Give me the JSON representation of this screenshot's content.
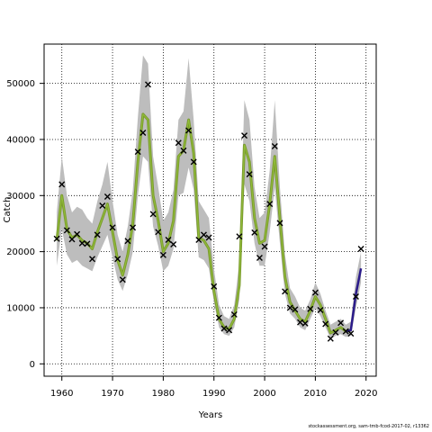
{
  "credit": "stockassessment.org, sam-tmb-fcod-2017-02, r13362",
  "chart_data": {
    "type": "line",
    "title": "",
    "xlabel": "Years",
    "ylabel": "Catch",
    "xlim": [
      1956.5,
      2022.0
    ],
    "ylim": [
      -2200,
      57000
    ],
    "xticks": [
      1960,
      1970,
      1980,
      1990,
      2000,
      2010,
      2020
    ],
    "yticks": [
      0,
      10000,
      20000,
      30000,
      40000,
      50000
    ],
    "grid": true,
    "colors": {
      "band": "#bdbdbd",
      "fit": "#7a9a2e",
      "fit_highlight": "#93c03a",
      "forecast": "#2b1b8a",
      "grid": "#000000",
      "observed": "#000000"
    },
    "series": [
      {
        "kind": "fitted",
        "x": [
          1959,
          1960,
          1961,
          1962,
          1963,
          1964,
          1965,
          1966,
          1967,
          1968,
          1969,
          1970,
          1971,
          1972,
          1973,
          1974,
          1975,
          1976,
          1977,
          1978,
          1979,
          1980,
          1981,
          1982,
          1983,
          1984,
          1985,
          1986,
          1987,
          1988,
          1989,
          1990,
          1991,
          1992,
          1993,
          1994,
          1995,
          1996,
          1997,
          1998,
          1999,
          2000,
          2001,
          2002,
          2003,
          2004,
          2005,
          2006,
          2007,
          2008,
          2009,
          2010,
          2011,
          2012,
          2013,
          2014,
          2015,
          2016,
          2017
        ],
        "values": [
          22000,
          30000,
          24000,
          22500,
          23000,
          22000,
          21500,
          20500,
          23500,
          26000,
          28500,
          23500,
          18500,
          15800,
          19500,
          25000,
          36000,
          44500,
          43500,
          30000,
          25500,
          20000,
          21500,
          25500,
          37000,
          38000,
          43500,
          37500,
          22500,
          22000,
          20500,
          13000,
          8000,
          6500,
          6200,
          8000,
          14000,
          39000,
          36000,
          26000,
          21500,
          22000,
          28500,
          37000,
          26000,
          15500,
          11000,
          9500,
          8000,
          7500,
          9500,
          12000,
          10500,
          8000,
          5500,
          6000,
          6500,
          5800,
          6000
        ]
      },
      {
        "kind": "forecast",
        "x": [
          2016,
          2017,
          2018,
          2019
        ],
        "values": [
          5800,
          6000,
          12500,
          17000
        ]
      },
      {
        "kind": "band-upper",
        "x": [
          1959,
          1960,
          1961,
          1962,
          1963,
          1964,
          1965,
          1966,
          1967,
          1968,
          1969,
          1970,
          1971,
          1972,
          1973,
          1974,
          1975,
          1976,
          1977,
          1978,
          1979,
          1980,
          1981,
          1982,
          1983,
          1984,
          1985,
          1986,
          1987,
          1988,
          1989,
          1990,
          1991,
          1992,
          1993,
          1994,
          1995,
          1996,
          1997,
          1998,
          1999,
          2000,
          2001,
          2002,
          2003,
          2004,
          2005,
          2006,
          2007,
          2008,
          2009,
          2010,
          2011,
          2012,
          2013,
          2014,
          2015,
          2016,
          2017,
          2018,
          2019
        ],
        "values": [
          27000,
          37000,
          30000,
          27000,
          28000,
          27500,
          26000,
          25000,
          29000,
          32000,
          36000,
          29000,
          23000,
          20000,
          24500,
          31000,
          44000,
          55000,
          53500,
          37000,
          31500,
          25500,
          27000,
          31000,
          43500,
          45000,
          54500,
          43500,
          29000,
          27500,
          26000,
          17000,
          10500,
          8500,
          8000,
          10500,
          18000,
          47000,
          43500,
          31500,
          26000,
          27000,
          34500,
          47000,
          31500,
          19500,
          13500,
          12000,
          10000,
          9500,
          11500,
          14500,
          12500,
          9500,
          7000,
          7500,
          8000,
          7000,
          7500,
          15500,
          20000
        ]
      },
      {
        "kind": "band-lower",
        "x": [
          1959,
          1960,
          1961,
          1962,
          1963,
          1964,
          1965,
          1966,
          1967,
          1968,
          1969,
          1970,
          1971,
          1972,
          1973,
          1974,
          1975,
          1976,
          1977,
          1978,
          1979,
          1980,
          1981,
          1982,
          1983,
          1984,
          1985,
          1986,
          1987,
          1988,
          1989,
          1990,
          1991,
          1992,
          1993,
          1994,
          1995,
          1996,
          1997,
          1998,
          1999,
          2000,
          2001,
          2002,
          2003,
          2004,
          2005,
          2006,
          2007,
          2008,
          2009,
          2010,
          2011,
          2012,
          2013,
          2014,
          2015,
          2016,
          2017,
          2018,
          2019
        ],
        "values": [
          17500,
          24000,
          19500,
          18000,
          18500,
          17500,
          17000,
          16500,
          19000,
          21000,
          23000,
          19000,
          15000,
          13000,
          16000,
          20000,
          30000,
          37000,
          36000,
          24500,
          21000,
          16500,
          17500,
          20500,
          30000,
          30500,
          35000,
          31000,
          19000,
          18500,
          17000,
          11000,
          6500,
          5300,
          5000,
          6500,
          11500,
          32000,
          29000,
          21500,
          17500,
          17500,
          23500,
          31500,
          21500,
          12500,
          9000,
          8000,
          6500,
          6000,
          8000,
          10000,
          8500,
          6500,
          4500,
          5000,
          5300,
          4800,
          5000,
          10000,
          14500
        ]
      },
      {
        "kind": "observed",
        "x": [
          1959,
          1960,
          1961,
          1962,
          1963,
          1964,
          1965,
          1966,
          1967,
          1968,
          1969,
          1970,
          1971,
          1972,
          1973,
          1974,
          1975,
          1976,
          1977,
          1978,
          1979,
          1980,
          1981,
          1982,
          1983,
          1984,
          1985,
          1986,
          1987,
          1988,
          1989,
          1990,
          1991,
          1992,
          1993,
          1994,
          1995,
          1996,
          1997,
          1998,
          1999,
          2000,
          2001,
          2002,
          2003,
          2004,
          2005,
          2006,
          2007,
          2008,
          2009,
          2010,
          2011,
          2012,
          2013,
          2014,
          2015,
          2016,
          2017,
          2018,
          2019
        ],
        "values": [
          22300,
          32000,
          23800,
          22200,
          23100,
          21500,
          21400,
          18700,
          23000,
          28200,
          29800,
          24300,
          18700,
          15000,
          21900,
          24300,
          37800,
          41200,
          49800,
          26700,
          23500,
          19400,
          22100,
          21300,
          39400,
          38000,
          41600,
          36000,
          22100,
          23000,
          22500,
          13800,
          8200,
          6300,
          6000,
          8800,
          22700,
          40700,
          33800,
          23400,
          18900,
          20900,
          28500,
          38800,
          25100,
          12900,
          10000,
          9700,
          7400,
          7200,
          9800,
          12700,
          9600,
          7100,
          4500,
          5600,
          7300,
          5800,
          5400,
          12000,
          20500
        ]
      }
    ]
  }
}
